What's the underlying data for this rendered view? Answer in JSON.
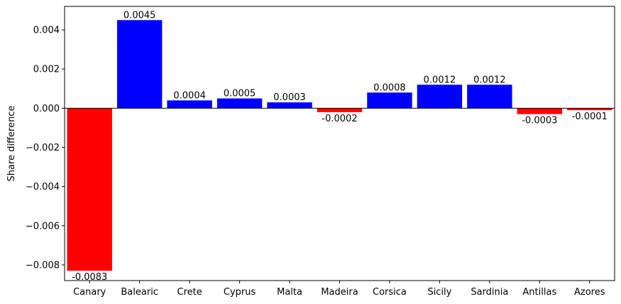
{
  "chart_data": {
    "type": "bar",
    "title": "",
    "xlabel": "",
    "ylabel": "Share difference",
    "ylim": [
      -0.0088,
      0.0052
    ],
    "yticks": [
      -0.008,
      -0.006,
      -0.004,
      -0.002,
      0.0,
      0.002,
      0.004
    ],
    "ytick_labels": [
      "−0.008",
      "−0.006",
      "−0.004",
      "−0.002",
      "0.000",
      "0.002",
      "0.004"
    ],
    "grid": false,
    "zero_line": true,
    "positive_color": "#0000ff",
    "negative_color": "#ff0000",
    "categories": [
      "Canary",
      "Balearic",
      "Crete",
      "Cyprus",
      "Malta",
      "Madeira",
      "Corsica",
      "Sicily",
      "Sardinia",
      "Antillas",
      "Azores"
    ],
    "values": [
      -0.0083,
      0.0045,
      0.0004,
      0.0005,
      0.0003,
      -0.0002,
      0.0008,
      0.0012,
      0.0012,
      -0.0003,
      -0.0001
    ],
    "value_labels": [
      "-0.0083",
      "0.0045",
      "0.0004",
      "0.0005",
      "0.0003",
      "-0.0002",
      "0.0008",
      "0.0012",
      "0.0012",
      "-0.0003",
      "-0.0001"
    ]
  }
}
